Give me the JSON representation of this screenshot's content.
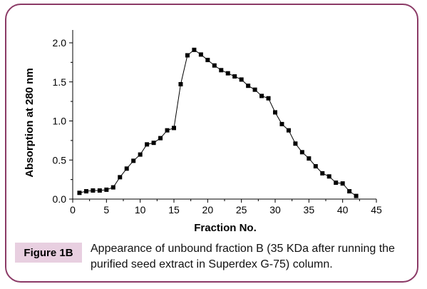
{
  "figure": {
    "tag": "Figure 1B",
    "caption": "Appearance of unbound fraction B (35 KDa after running the purified seed extract in Superdex G-75) column."
  },
  "colors": {
    "border": "#8b3a66",
    "tag_bg": "#e8cfe0",
    "series": "#000000"
  },
  "chart_data": {
    "type": "line",
    "xlabel": "Fraction No.",
    "ylabel": "Absorption at 280 nm",
    "xlim": [
      0,
      45
    ],
    "ylim": [
      0.0,
      2.0
    ],
    "xticks": [
      "0",
      "5",
      "10",
      "15",
      "20",
      "25",
      "30",
      "35",
      "40",
      "45"
    ],
    "yticks": [
      "0.0",
      "0.5",
      "1.0",
      "1.5",
      "2.0"
    ],
    "grid": false,
    "marker": "square",
    "x": [
      1,
      2,
      3,
      4,
      5,
      6,
      7,
      8,
      9,
      10,
      11,
      12,
      13,
      14,
      15,
      16,
      17,
      18,
      19,
      20,
      21,
      22,
      23,
      24,
      25,
      26,
      27,
      28,
      29,
      30,
      31,
      32,
      33,
      34,
      35,
      36,
      37,
      38,
      39,
      40,
      41,
      42
    ],
    "y": [
      0.08,
      0.1,
      0.11,
      0.11,
      0.12,
      0.15,
      0.28,
      0.39,
      0.49,
      0.57,
      0.7,
      0.72,
      0.78,
      0.88,
      0.91,
      1.47,
      1.84,
      1.91,
      1.85,
      1.78,
      1.71,
      1.65,
      1.61,
      1.57,
      1.53,
      1.45,
      1.4,
      1.32,
      1.29,
      1.11,
      0.96,
      0.88,
      0.71,
      0.6,
      0.52,
      0.42,
      0.33,
      0.29,
      0.21,
      0.2,
      0.1,
      0.04
    ]
  }
}
